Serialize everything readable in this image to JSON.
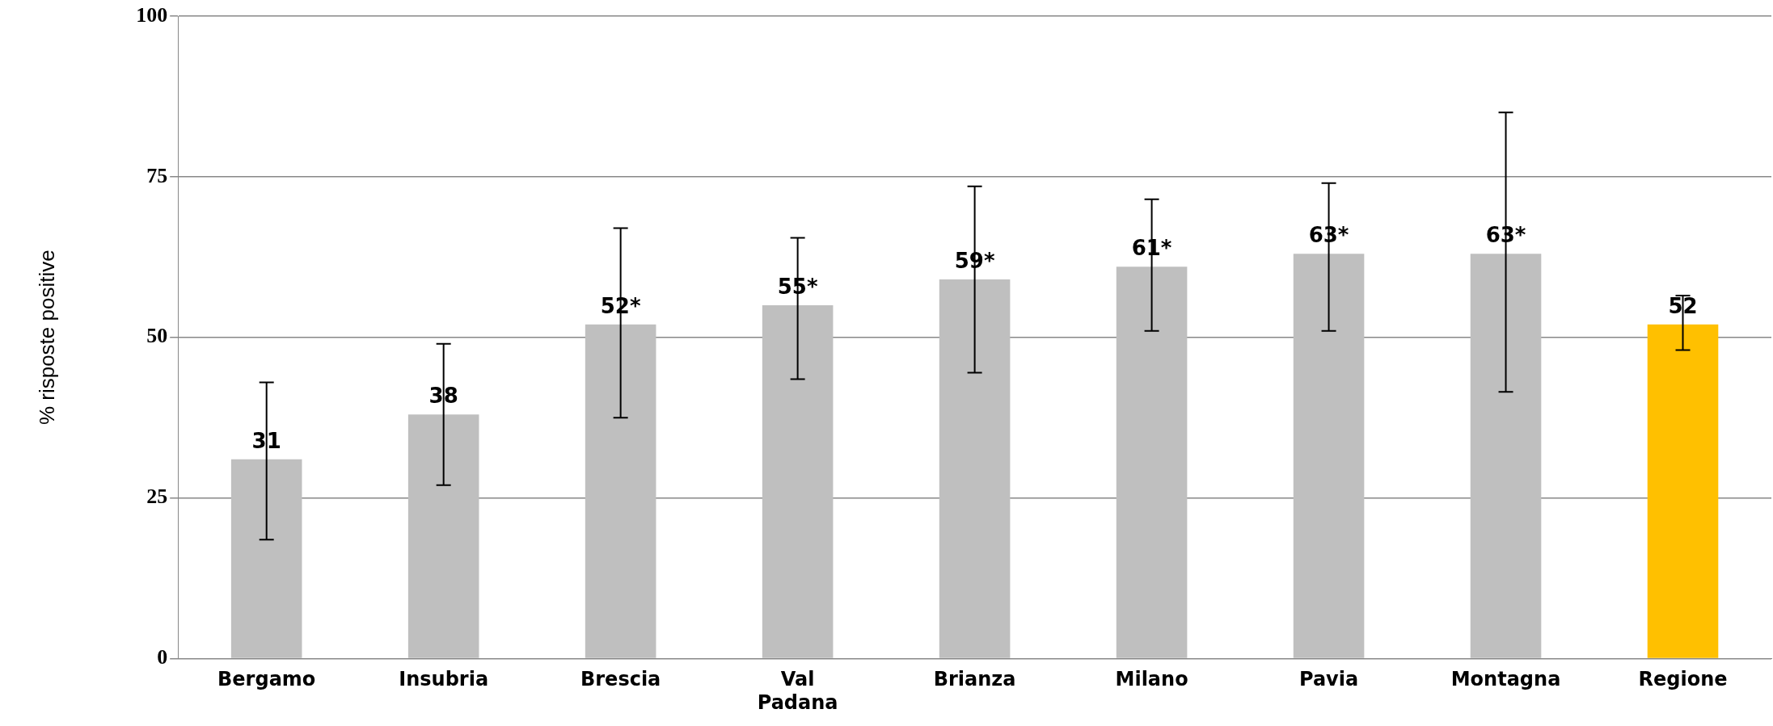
{
  "chart_data": {
    "type": "bar",
    "ylabel": "% risposte positive",
    "categories": [
      "Bergamo",
      "Insubria",
      "Brescia",
      "Val Padana",
      "Brianza",
      "Milano",
      "Pavia",
      "Montagna",
      "Regione"
    ],
    "values": [
      31,
      38,
      52,
      55,
      59,
      61,
      63,
      63,
      52
    ],
    "colors": [
      "#bfbfbf",
      "#bfbfbf",
      "#bfbfbf",
      "#bfbfbf",
      "#bfbfbf",
      "#bfbfbf",
      "#bfbfbf",
      "#bfbfbf",
      "#ffc000"
    ],
    "errors": [
      [
        18.5,
        43
      ],
      [
        27,
        49
      ],
      [
        37.5,
        67
      ],
      [
        43.5,
        65.5
      ],
      [
        44.5,
        73.5
      ],
      [
        51,
        71.5
      ],
      [
        51,
        74
      ],
      [
        41.5,
        85
      ],
      [
        48,
        56.5
      ]
    ],
    "value_labels": [
      "31",
      "38",
      "52*",
      "55*",
      "59*",
      "61*",
      "63*",
      "63*",
      "52"
    ],
    "ylim": [
      0,
      100
    ],
    "yticks": [
      0,
      25,
      50,
      75,
      100
    ],
    "grid": "y",
    "legend": false
  }
}
